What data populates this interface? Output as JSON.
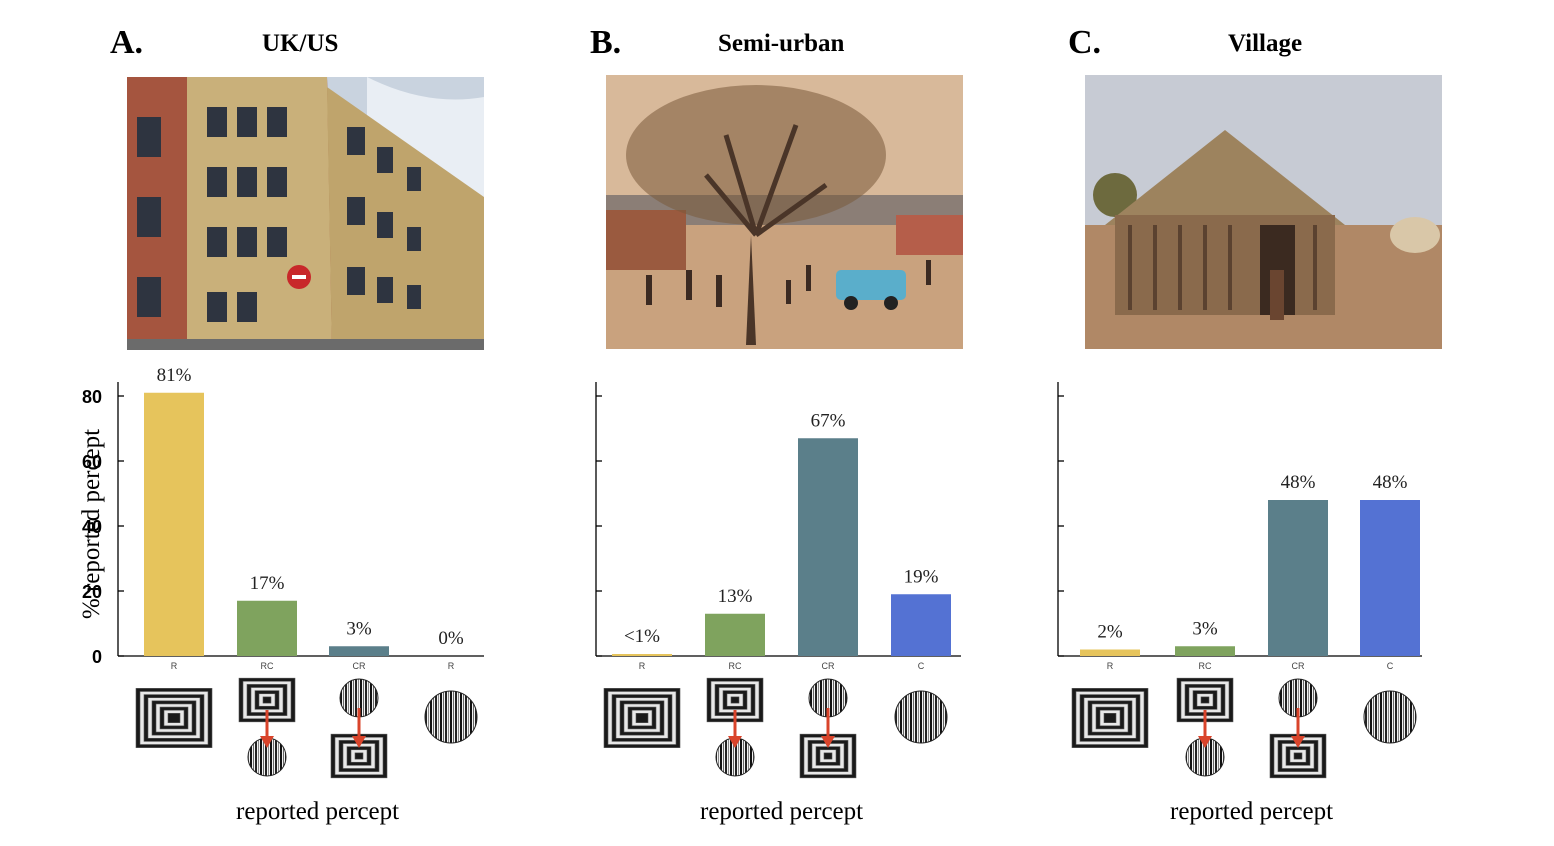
{
  "ylabel": "% reported percept",
  "chart_data": [
    {
      "type": "bar",
      "panel_label": "A.",
      "title": "UK/US",
      "categories": [
        "R",
        "RC",
        "CR",
        "R"
      ],
      "values": [
        81,
        17,
        3,
        0
      ],
      "value_labels": [
        "81%",
        "17%",
        "3%",
        "0%"
      ],
      "ylim": [
        0,
        80
      ],
      "yticks": [
        0,
        20,
        40,
        60,
        80
      ],
      "xlabel": "reported percept",
      "colors": [
        "#e6c45c",
        "#7fa35e",
        "#5b7f8a",
        "#5472d3"
      ],
      "percept_icons": [
        "square-grating-icon",
        "square-to-circle-icon",
        "circle-to-square-icon",
        "circle-grating-icon"
      ],
      "photo": "apartment-building-photo"
    },
    {
      "type": "bar",
      "panel_label": "B.",
      "title": "Semi-urban",
      "categories": [
        "R",
        "RC",
        "CR",
        "C"
      ],
      "values": [
        0.5,
        13,
        67,
        19
      ],
      "value_labels": [
        "<1%",
        "13%",
        "67%",
        "19%"
      ],
      "ylim": [
        0,
        80
      ],
      "yticks": [
        0,
        20,
        40,
        60,
        80
      ],
      "xlabel": "reported percept",
      "colors": [
        "#e6c45c",
        "#7fa35e",
        "#5b7f8a",
        "#5472d3"
      ],
      "percept_icons": [
        "square-grating-icon",
        "square-to-circle-icon",
        "circle-to-square-icon",
        "circle-grating-icon"
      ],
      "photo": "semi-urban-street-photo"
    },
    {
      "type": "bar",
      "panel_label": "C.",
      "title": "Village",
      "categories": [
        "R",
        "RC",
        "CR",
        "C"
      ],
      "values": [
        2,
        3,
        48,
        48
      ],
      "value_labels": [
        "2%",
        "3%",
        "48%",
        "48%"
      ],
      "ylim": [
        0,
        80
      ],
      "yticks": [
        0,
        20,
        40,
        60,
        80
      ],
      "xlabel": "reported percept",
      "colors": [
        "#e6c45c",
        "#7fa35e",
        "#5b7f8a",
        "#5472d3"
      ],
      "percept_icons": [
        "square-grating-icon",
        "square-to-circle-icon",
        "circle-to-square-icon",
        "circle-grating-icon"
      ],
      "photo": "village-hut-photo"
    }
  ]
}
